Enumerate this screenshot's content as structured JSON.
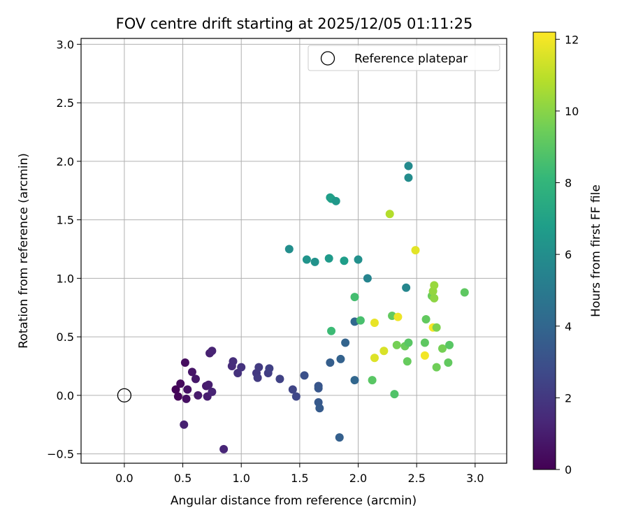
{
  "chart_data": {
    "type": "scatter",
    "title": "FOV centre drift starting at 2025/12/05 01:11:25",
    "xlabel": "Angular distance from reference (arcmin)",
    "ylabel": "Rotation from reference (arcmin)",
    "xlim": [
      -0.37,
      3.27
    ],
    "ylim": [
      -0.58,
      3.05
    ],
    "xticks": [
      0.0,
      0.5,
      1.0,
      1.5,
      2.0,
      2.5,
      3.0
    ],
    "xtick_labels": [
      "0.0",
      "0.5",
      "1.0",
      "1.5",
      "2.0",
      "2.5",
      "3.0"
    ],
    "yticks": [
      -0.5,
      0.0,
      0.5,
      1.0,
      1.5,
      2.0,
      2.5,
      3.0
    ],
    "ytick_labels": [
      "−0.5",
      "0.0",
      "0.5",
      "1.0",
      "1.5",
      "2.0",
      "2.5",
      "3.0"
    ],
    "grid": true,
    "legend": {
      "position": "top-right",
      "entries": [
        {
          "label": "Reference platepar",
          "marker": "open-circle"
        }
      ]
    },
    "reference_point": {
      "x": 0.0,
      "y": 0.0
    },
    "colorbar": {
      "label": "Hours from first FF file",
      "colormap": "viridis",
      "range": [
        0,
        12.2
      ],
      "ticks": [
        0,
        2,
        4,
        6,
        8,
        10,
        12
      ],
      "tick_labels": [
        "0",
        "2",
        "4",
        "6",
        "8",
        "10",
        "12"
      ]
    },
    "points": [
      {
        "x": 0.44,
        "y": 0.05,
        "c": 0.1
      },
      {
        "x": 0.46,
        "y": -0.01,
        "c": 0.2
      },
      {
        "x": 0.48,
        "y": 0.1,
        "c": 0.3
      },
      {
        "x": 0.52,
        "y": 0.28,
        "c": 0.4
      },
      {
        "x": 0.53,
        "y": -0.03,
        "c": 0.5
      },
      {
        "x": 0.54,
        "y": 0.05,
        "c": 0.6
      },
      {
        "x": 0.51,
        "y": -0.25,
        "c": 1.1
      },
      {
        "x": 0.58,
        "y": 0.2,
        "c": 0.7
      },
      {
        "x": 0.61,
        "y": 0.14,
        "c": 0.8
      },
      {
        "x": 0.63,
        "y": 0.0,
        "c": 0.9
      },
      {
        "x": 0.7,
        "y": 0.08,
        "c": 0.9
      },
      {
        "x": 0.71,
        "y": -0.01,
        "c": 1.0
      },
      {
        "x": 0.72,
        "y": 0.09,
        "c": 1.0
      },
      {
        "x": 0.73,
        "y": 0.36,
        "c": 1.1
      },
      {
        "x": 0.75,
        "y": 0.38,
        "c": 1.2
      },
      {
        "x": 0.75,
        "y": 0.03,
        "c": 1.2
      },
      {
        "x": 0.85,
        "y": -0.46,
        "c": 1.3
      },
      {
        "x": 0.92,
        "y": 0.25,
        "c": 1.5
      },
      {
        "x": 0.93,
        "y": 0.29,
        "c": 1.6
      },
      {
        "x": 0.97,
        "y": 0.19,
        "c": 1.7
      },
      {
        "x": 1.0,
        "y": 0.24,
        "c": 1.8
      },
      {
        "x": 1.13,
        "y": 0.19,
        "c": 2.0
      },
      {
        "x": 1.14,
        "y": 0.15,
        "c": 2.1
      },
      {
        "x": 1.15,
        "y": 0.24,
        "c": 2.1
      },
      {
        "x": 1.23,
        "y": 0.19,
        "c": 2.2
      },
      {
        "x": 1.24,
        "y": 0.23,
        "c": 2.3
      },
      {
        "x": 1.33,
        "y": 0.14,
        "c": 2.4
      },
      {
        "x": 1.44,
        "y": 0.05,
        "c": 2.5
      },
      {
        "x": 1.47,
        "y": -0.01,
        "c": 2.6
      },
      {
        "x": 1.54,
        "y": 0.17,
        "c": 3.0
      },
      {
        "x": 1.66,
        "y": 0.08,
        "c": 3.2
      },
      {
        "x": 1.66,
        "y": 0.06,
        "c": 3.3
      },
      {
        "x": 1.66,
        "y": -0.06,
        "c": 3.4
      },
      {
        "x": 1.67,
        "y": -0.11,
        "c": 3.5
      },
      {
        "x": 1.76,
        "y": 0.28,
        "c": 3.6
      },
      {
        "x": 1.84,
        "y": -0.36,
        "c": 3.7
      },
      {
        "x": 1.85,
        "y": 0.31,
        "c": 3.8
      },
      {
        "x": 1.89,
        "y": 0.45,
        "c": 3.9
      },
      {
        "x": 1.97,
        "y": 0.63,
        "c": 4.1
      },
      {
        "x": 1.97,
        "y": 0.13,
        "c": 4.0
      },
      {
        "x": 1.41,
        "y": 1.25,
        "c": 6.0
      },
      {
        "x": 1.56,
        "y": 1.16,
        "c": 6.3
      },
      {
        "x": 1.63,
        "y": 1.14,
        "c": 6.2
      },
      {
        "x": 1.75,
        "y": 1.17,
        "c": 6.6
      },
      {
        "x": 1.76,
        "y": 1.69,
        "c": 6.8
      },
      {
        "x": 1.77,
        "y": 1.68,
        "c": 6.9
      },
      {
        "x": 1.81,
        "y": 1.66,
        "c": 6.5
      },
      {
        "x": 1.88,
        "y": 1.15,
        "c": 6.8
      },
      {
        "x": 2.0,
        "y": 1.16,
        "c": 6.1
      },
      {
        "x": 2.08,
        "y": 1.0,
        "c": 5.5
      },
      {
        "x": 2.41,
        "y": 0.92,
        "c": 5.6
      },
      {
        "x": 2.43,
        "y": 1.96,
        "c": 5.8
      },
      {
        "x": 2.43,
        "y": 1.86,
        "c": 5.9
      },
      {
        "x": 1.77,
        "y": 0.55,
        "c": 8.3
      },
      {
        "x": 1.97,
        "y": 0.84,
        "c": 8.5
      },
      {
        "x": 2.02,
        "y": 0.64,
        "c": 8.6
      },
      {
        "x": 2.12,
        "y": 0.13,
        "c": 9.0
      },
      {
        "x": 2.14,
        "y": 0.62,
        "c": 11.8
      },
      {
        "x": 2.14,
        "y": 0.32,
        "c": 11.6
      },
      {
        "x": 2.22,
        "y": 0.38,
        "c": 11.5
      },
      {
        "x": 2.27,
        "y": 1.55,
        "c": 10.8
      },
      {
        "x": 2.29,
        "y": 0.68,
        "c": 9.2
      },
      {
        "x": 2.31,
        "y": 0.01,
        "c": 8.8
      },
      {
        "x": 2.33,
        "y": 0.43,
        "c": 9.6
      },
      {
        "x": 2.34,
        "y": 0.67,
        "c": 11.9
      },
      {
        "x": 2.4,
        "y": 0.42,
        "c": 9.4
      },
      {
        "x": 2.42,
        "y": 0.29,
        "c": 9.3
      },
      {
        "x": 2.43,
        "y": 0.45,
        "c": 9.0
      },
      {
        "x": 2.49,
        "y": 1.24,
        "c": 11.7
      },
      {
        "x": 2.57,
        "y": 0.45,
        "c": 9.1
      },
      {
        "x": 2.57,
        "y": 0.34,
        "c": 12.0
      },
      {
        "x": 2.58,
        "y": 0.65,
        "c": 9.2
      },
      {
        "x": 2.63,
        "y": 0.85,
        "c": 9.4
      },
      {
        "x": 2.64,
        "y": 0.89,
        "c": 10.2
      },
      {
        "x": 2.64,
        "y": 0.58,
        "c": 12.1
      },
      {
        "x": 2.65,
        "y": 0.94,
        "c": 10.3
      },
      {
        "x": 2.65,
        "y": 0.83,
        "c": 10.1
      },
      {
        "x": 2.67,
        "y": 0.24,
        "c": 9.5
      },
      {
        "x": 2.67,
        "y": 0.58,
        "c": 9.8
      },
      {
        "x": 2.72,
        "y": 0.4,
        "c": 9.6
      },
      {
        "x": 2.77,
        "y": 0.28,
        "c": 9.2
      },
      {
        "x": 2.78,
        "y": 0.43,
        "c": 9.0
      },
      {
        "x": 2.91,
        "y": 0.88,
        "c": 9.1
      }
    ]
  }
}
